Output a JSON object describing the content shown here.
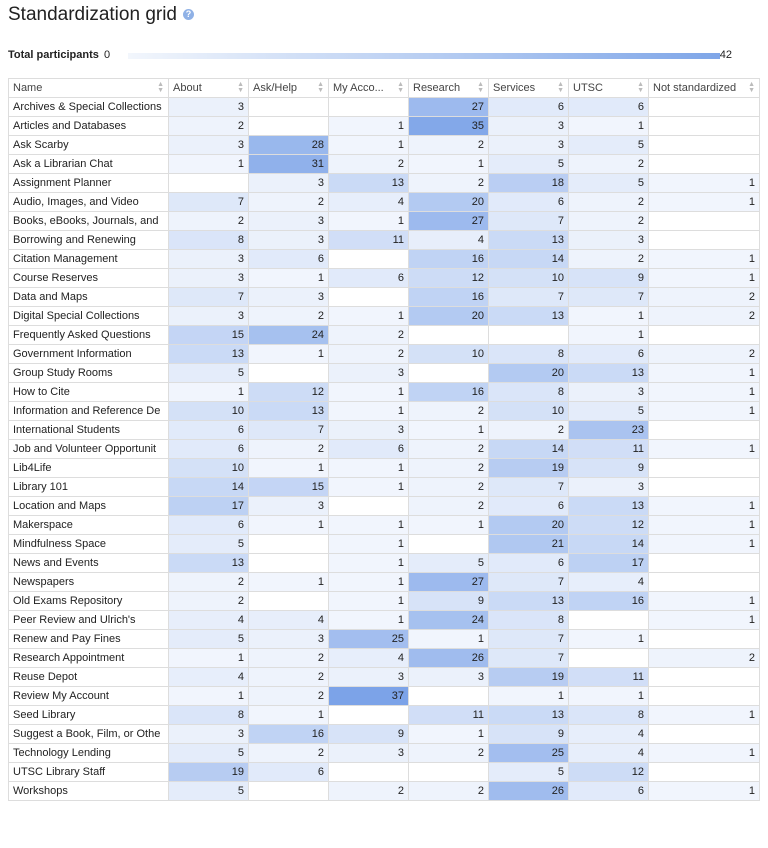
{
  "header": {
    "title": "Standardization grid"
  },
  "participants": {
    "label": "Total participants",
    "min": 0,
    "max": 42
  },
  "table": {
    "columns": [
      "Name",
      "About",
      "Ask/Help",
      "My Acco...",
      "Research",
      "Services",
      "UTSC",
      "Not standardized"
    ],
    "rows": [
      [
        "Archives & Special Collections",
        3,
        null,
        null,
        27,
        6,
        6,
        null
      ],
      [
        "Articles and Databases",
        2,
        null,
        1,
        35,
        3,
        1,
        null
      ],
      [
        "Ask Scarby",
        3,
        28,
        1,
        2,
        3,
        5,
        null
      ],
      [
        "Ask a Librarian Chat",
        1,
        31,
        2,
        1,
        5,
        2,
        null
      ],
      [
        "Assignment Planner",
        null,
        3,
        13,
        2,
        18,
        5,
        1
      ],
      [
        "Audio, Images, and Video",
        7,
        2,
        4,
        20,
        6,
        2,
        1
      ],
      [
        "Books, eBooks, Journals, and",
        2,
        3,
        1,
        27,
        7,
        2,
        null
      ],
      [
        "Borrowing and Renewing",
        8,
        3,
        11,
        4,
        13,
        3,
        null
      ],
      [
        "Citation Management",
        3,
        6,
        null,
        16,
        14,
        2,
        1
      ],
      [
        "Course Reserves",
        3,
        1,
        6,
        12,
        10,
        9,
        1
      ],
      [
        "Data and Maps",
        7,
        3,
        null,
        16,
        7,
        7,
        2
      ],
      [
        "Digital Special Collections",
        3,
        2,
        1,
        20,
        13,
        1,
        2
      ],
      [
        "Frequently Asked Questions",
        15,
        24,
        2,
        null,
        null,
        1,
        null
      ],
      [
        "Government Information",
        13,
        1,
        2,
        10,
        8,
        6,
        2
      ],
      [
        "Group Study Rooms",
        5,
        null,
        3,
        null,
        20,
        13,
        1
      ],
      [
        "How to Cite",
        1,
        12,
        1,
        16,
        8,
        3,
        1
      ],
      [
        "Information and Reference De",
        10,
        13,
        1,
        2,
        10,
        5,
        1
      ],
      [
        "International Students",
        6,
        7,
        3,
        1,
        2,
        23,
        null
      ],
      [
        "Job and Volunteer Opportunit",
        6,
        2,
        6,
        2,
        14,
        11,
        1
      ],
      [
        "Lib4Life",
        10,
        1,
        1,
        2,
        19,
        9,
        null
      ],
      [
        "Library 101",
        14,
        15,
        1,
        2,
        7,
        3,
        null
      ],
      [
        "Location and Maps",
        17,
        3,
        null,
        2,
        6,
        13,
        1
      ],
      [
        "Makerspace",
        6,
        1,
        1,
        1,
        20,
        12,
        1
      ],
      [
        "Mindfulness Space",
        5,
        null,
        1,
        null,
        21,
        14,
        1
      ],
      [
        "News and Events",
        13,
        null,
        1,
        5,
        6,
        17,
        null
      ],
      [
        "Newspapers",
        2,
        1,
        1,
        27,
        7,
        4,
        null
      ],
      [
        "Old Exams Repository",
        2,
        null,
        1,
        9,
        13,
        16,
        1
      ],
      [
        "Peer Review and Ulrich's",
        4,
        4,
        1,
        24,
        8,
        null,
        1
      ],
      [
        "Renew and Pay Fines",
        5,
        3,
        25,
        1,
        7,
        1,
        null
      ],
      [
        "Research Appointment",
        1,
        2,
        4,
        26,
        7,
        null,
        2
      ],
      [
        "Reuse Depot",
        4,
        2,
        3,
        3,
        19,
        11,
        null
      ],
      [
        "Review My Account",
        1,
        2,
        37,
        null,
        1,
        1,
        null
      ],
      [
        "Seed Library",
        8,
        1,
        null,
        11,
        13,
        8,
        1
      ],
      [
        "Suggest a Book, Film, or Othe",
        3,
        16,
        9,
        1,
        9,
        4,
        null
      ],
      [
        "Technology Lending",
        5,
        2,
        3,
        2,
        25,
        4,
        1
      ],
      [
        "UTSC Library Staff",
        19,
        6,
        null,
        null,
        5,
        12,
        null
      ],
      [
        "Workshops",
        5,
        null,
        2,
        2,
        26,
        6,
        1
      ]
    ]
  }
}
